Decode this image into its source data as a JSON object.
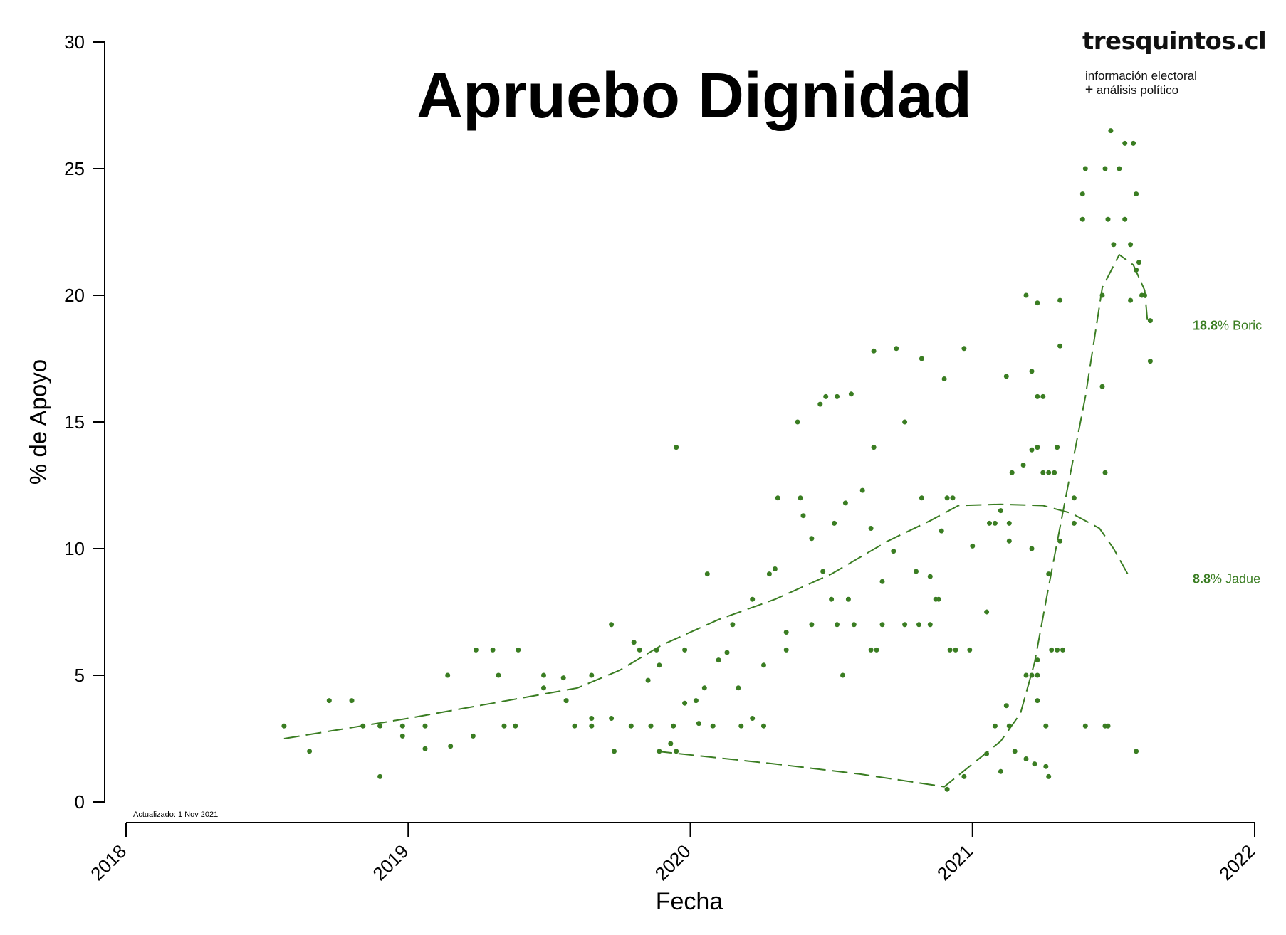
{
  "chart_data": {
    "type": "scatter",
    "title": "Apruebo Dignidad",
    "xlabel": "Fecha",
    "ylabel": "% de Apoyo",
    "xlim": [
      2018.0,
      2022.0
    ],
    "ylim": [
      0,
      30
    ],
    "x_ticks": [
      "2018",
      "2019",
      "2020",
      "2021",
      "2022"
    ],
    "y_ticks": [
      "0",
      "5",
      "10",
      "15",
      "20",
      "25",
      "30"
    ],
    "point_color": "#3a7d22",
    "updated": "Actualizado: 1 Nov 2021",
    "series": [
      {
        "name": "Jadue",
        "end_value": "8.8",
        "label_text": "% Jadue",
        "trend": [
          [
            2018.56,
            2.5
          ],
          [
            2019.0,
            3.3
          ],
          [
            2019.3,
            3.9
          ],
          [
            2019.6,
            4.5
          ],
          [
            2019.75,
            5.2
          ],
          [
            2019.9,
            6.2
          ],
          [
            2020.1,
            7.2
          ],
          [
            2020.3,
            8.0
          ],
          [
            2020.5,
            9.0
          ],
          [
            2020.7,
            10.3
          ],
          [
            2020.85,
            11.1
          ],
          [
            2020.95,
            11.7
          ],
          [
            2021.1,
            11.75
          ],
          [
            2021.25,
            11.7
          ],
          [
            2021.35,
            11.4
          ],
          [
            2021.45,
            10.8
          ],
          [
            2021.5,
            10.0
          ],
          [
            2021.55,
            9.0
          ]
        ]
      },
      {
        "name": "Boric",
        "end_value": "18.8",
        "label_text": "% Boric",
        "trend": [
          [
            2019.88,
            2.0
          ],
          [
            2020.3,
            1.5
          ],
          [
            2020.6,
            1.1
          ],
          [
            2020.9,
            0.6
          ],
          [
            2021.0,
            1.5
          ],
          [
            2021.1,
            2.4
          ],
          [
            2021.17,
            3.5
          ],
          [
            2021.22,
            5.5
          ],
          [
            2021.27,
            8.5
          ],
          [
            2021.33,
            12.0
          ],
          [
            2021.4,
            16.0
          ],
          [
            2021.46,
            20.3
          ],
          [
            2021.52,
            21.6
          ],
          [
            2021.57,
            21.2
          ],
          [
            2021.61,
            20.2
          ],
          [
            2021.62,
            19.0
          ]
        ]
      }
    ],
    "points": [
      [
        2018.56,
        3
      ],
      [
        2018.65,
        2
      ],
      [
        2018.72,
        4
      ],
      [
        2018.8,
        4
      ],
      [
        2018.84,
        3
      ],
      [
        2018.9,
        3
      ],
      [
        2018.9,
        1
      ],
      [
        2018.98,
        3
      ],
      [
        2018.98,
        2.6
      ],
      [
        2019.06,
        3
      ],
      [
        2019.06,
        2.1
      ],
      [
        2019.14,
        5
      ],
      [
        2019.15,
        2.2
      ],
      [
        2019.23,
        2.6
      ],
      [
        2019.24,
        6
      ],
      [
        2019.3,
        6
      ],
      [
        2019.32,
        5
      ],
      [
        2019.34,
        3
      ],
      [
        2019.38,
        3
      ],
      [
        2019.39,
        6
      ],
      [
        2019.48,
        5
      ],
      [
        2019.48,
        4.5
      ],
      [
        2019.55,
        4.9
      ],
      [
        2019.56,
        4
      ],
      [
        2019.59,
        3
      ],
      [
        2019.65,
        5
      ],
      [
        2019.65,
        3.3
      ],
      [
        2019.65,
        3
      ],
      [
        2019.72,
        7
      ],
      [
        2019.72,
        3.3
      ],
      [
        2019.73,
        2
      ],
      [
        2019.79,
        3
      ],
      [
        2019.8,
        6.3
      ],
      [
        2019.82,
        6
      ],
      [
        2019.85,
        4.8
      ],
      [
        2019.86,
        3
      ],
      [
        2019.88,
        6
      ],
      [
        2019.89,
        5.4
      ],
      [
        2019.89,
        2
      ],
      [
        2019.93,
        2.3
      ],
      [
        2019.94,
        3
      ],
      [
        2019.95,
        14
      ],
      [
        2019.95,
        2
      ],
      [
        2019.98,
        3.9
      ],
      [
        2019.98,
        6
      ],
      [
        2020.02,
        4
      ],
      [
        2020.03,
        3.1
      ],
      [
        2020.05,
        4.5
      ],
      [
        2020.06,
        9
      ],
      [
        2020.08,
        3
      ],
      [
        2020.1,
        5.6
      ],
      [
        2020.13,
        5.9
      ],
      [
        2020.15,
        7
      ],
      [
        2020.17,
        4.5
      ],
      [
        2020.18,
        3
      ],
      [
        2020.22,
        3.3
      ],
      [
        2020.22,
        8
      ],
      [
        2020.26,
        5.4
      ],
      [
        2020.26,
        3
      ],
      [
        2020.28,
        9
      ],
      [
        2020.3,
        9.2
      ],
      [
        2020.31,
        12
      ],
      [
        2020.34,
        6.7
      ],
      [
        2020.34,
        6
      ],
      [
        2020.38,
        15
      ],
      [
        2020.39,
        12
      ],
      [
        2020.4,
        11.3
      ],
      [
        2020.43,
        10.4
      ],
      [
        2020.43,
        7
      ],
      [
        2020.46,
        15.7
      ],
      [
        2020.47,
        9.1
      ],
      [
        2020.48,
        16
      ],
      [
        2020.5,
        8
      ],
      [
        2020.51,
        11
      ],
      [
        2020.52,
        7
      ],
      [
        2020.52,
        16
      ],
      [
        2020.54,
        5
      ],
      [
        2020.55,
        11.8
      ],
      [
        2020.56,
        8
      ],
      [
        2020.57,
        16.1
      ],
      [
        2020.58,
        7
      ],
      [
        2020.61,
        12.3
      ],
      [
        2020.64,
        10.8
      ],
      [
        2020.64,
        6
      ],
      [
        2020.65,
        17.8
      ],
      [
        2020.65,
        14
      ],
      [
        2020.66,
        6
      ],
      [
        2020.68,
        8.7
      ],
      [
        2020.68,
        7
      ],
      [
        2020.72,
        9.9
      ],
      [
        2020.73,
        17.9
      ],
      [
        2020.76,
        15
      ],
      [
        2020.76,
        7
      ],
      [
        2020.8,
        9.1
      ],
      [
        2020.81,
        7
      ],
      [
        2020.82,
        17.5
      ],
      [
        2020.82,
        12
      ],
      [
        2020.85,
        8.9
      ],
      [
        2020.85,
        7
      ],
      [
        2020.87,
        8
      ],
      [
        2020.88,
        8
      ],
      [
        2020.89,
        10.7
      ],
      [
        2020.9,
        16.7
      ],
      [
        2020.91,
        12
      ],
      [
        2020.91,
        0.5
      ],
      [
        2020.92,
        6
      ],
      [
        2020.93,
        12
      ],
      [
        2020.94,
        6
      ],
      [
        2020.97,
        17.9
      ],
      [
        2020.97,
        1
      ],
      [
        2020.99,
        6
      ],
      [
        2021.0,
        10.1
      ],
      [
        2021.05,
        7.5
      ],
      [
        2021.05,
        1.9
      ],
      [
        2021.06,
        11
      ],
      [
        2021.08,
        11
      ],
      [
        2021.08,
        3
      ],
      [
        2021.1,
        11.5
      ],
      [
        2021.1,
        1.2
      ],
      [
        2021.12,
        16.8
      ],
      [
        2021.12,
        3.8
      ],
      [
        2021.13,
        11
      ],
      [
        2021.13,
        10.3
      ],
      [
        2021.13,
        3
      ],
      [
        2021.14,
        13
      ],
      [
        2021.15,
        2
      ],
      [
        2021.18,
        13.3
      ],
      [
        2021.19,
        20
      ],
      [
        2021.19,
        5
      ],
      [
        2021.19,
        1.7
      ],
      [
        2021.21,
        17
      ],
      [
        2021.21,
        13.9
      ],
      [
        2021.21,
        10
      ],
      [
        2021.21,
        5
      ],
      [
        2021.22,
        1.5
      ],
      [
        2021.23,
        19.7
      ],
      [
        2021.23,
        16
      ],
      [
        2021.23,
        14
      ],
      [
        2021.23,
        5.6
      ],
      [
        2021.23,
        4
      ],
      [
        2021.23,
        5
      ],
      [
        2021.25,
        16
      ],
      [
        2021.25,
        13
      ],
      [
        2021.26,
        3
      ],
      [
        2021.26,
        1.4
      ],
      [
        2021.27,
        13
      ],
      [
        2021.27,
        9
      ],
      [
        2021.27,
        1
      ],
      [
        2021.28,
        6
      ],
      [
        2021.29,
        13
      ],
      [
        2021.3,
        14
      ],
      [
        2021.3,
        6
      ],
      [
        2021.31,
        19.8
      ],
      [
        2021.31,
        18
      ],
      [
        2021.31,
        10.3
      ],
      [
        2021.32,
        6
      ],
      [
        2021.36,
        12
      ],
      [
        2021.36,
        11
      ],
      [
        2021.39,
        24
      ],
      [
        2021.39,
        23
      ],
      [
        2021.4,
        25
      ],
      [
        2021.4,
        3
      ],
      [
        2021.46,
        16.4
      ],
      [
        2021.46,
        20
      ],
      [
        2021.47,
        25
      ],
      [
        2021.47,
        13
      ],
      [
        2021.47,
        3
      ],
      [
        2021.48,
        23
      ],
      [
        2021.48,
        3
      ],
      [
        2021.49,
        26.5
      ],
      [
        2021.5,
        22
      ],
      [
        2021.52,
        25
      ],
      [
        2021.54,
        26
      ],
      [
        2021.54,
        23
      ],
      [
        2021.56,
        22
      ],
      [
        2021.56,
        19.8
      ],
      [
        2021.57,
        26
      ],
      [
        2021.58,
        24
      ],
      [
        2021.58,
        21
      ],
      [
        2021.58,
        2
      ],
      [
        2021.59,
        21.3
      ],
      [
        2021.6,
        20
      ],
      [
        2021.61,
        20
      ],
      [
        2021.63,
        19
      ],
      [
        2021.63,
        17.4
      ]
    ]
  },
  "branding": {
    "site": "tresquintos.cl",
    "tagline_1": "información electoral",
    "tagline_2_plus": "+",
    "tagline_2": " análisis político"
  }
}
